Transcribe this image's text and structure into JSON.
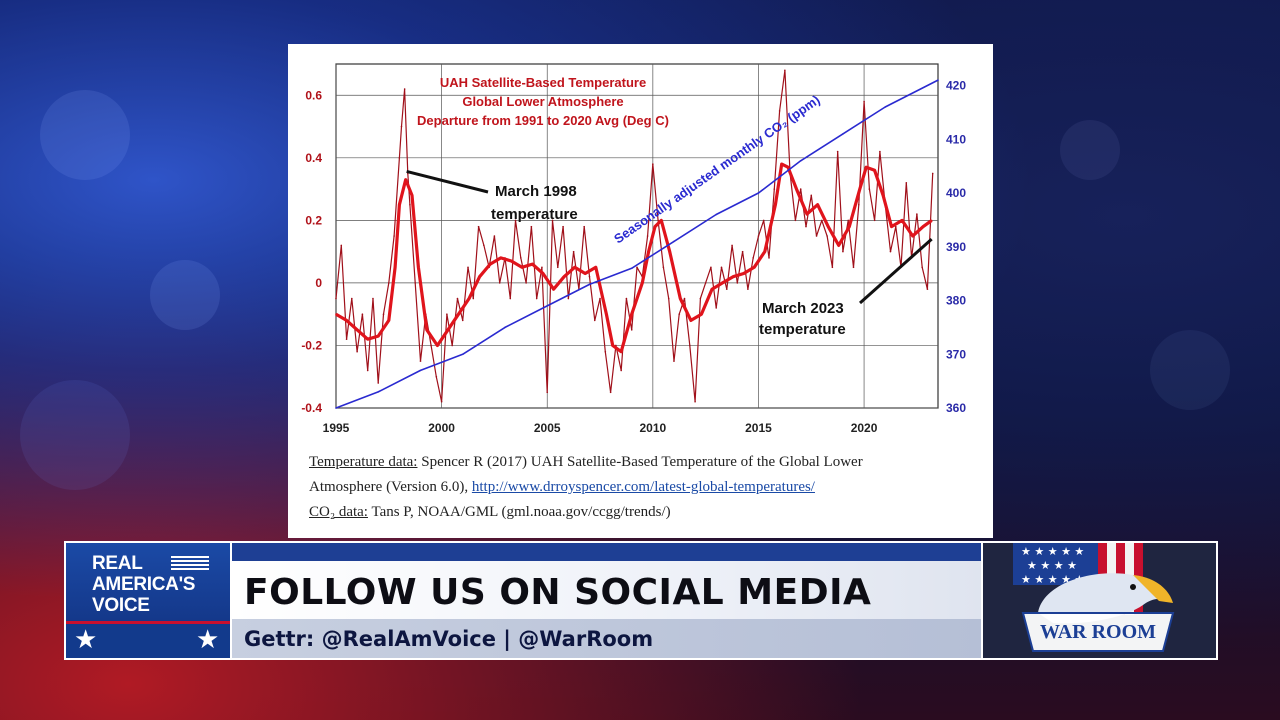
{
  "chart_data": {
    "type": "line",
    "title_lines": [
      "UAH Satellite-Based Temperature",
      "Global Lower Atmosphere",
      "Departure from 1991 to 2020 Avg (Deg C)"
    ],
    "xlim": [
      1995,
      2023.5
    ],
    "ylim": [
      -0.4,
      0.7
    ],
    "y2lim": [
      360,
      424
    ],
    "x_ticks": [
      "1995",
      "2000",
      "2005",
      "2010",
      "2015",
      "2020"
    ],
    "y_ticks": [
      "0.6",
      "0.4",
      "0.2",
      "0",
      "-0.2",
      "-0.4"
    ],
    "y2_ticks": [
      "420",
      "410",
      "400",
      "390",
      "380",
      "370",
      "360"
    ],
    "grid": true,
    "co2_label": "Seasonally adjusted monthly CO₂ (ppm)",
    "series": [
      {
        "color": "#a0101a",
        "x": [
          1995.0,
          1995.25,
          1995.5,
          1995.75,
          1996.0,
          1996.25,
          1996.5,
          1996.75,
          1997.0,
          1997.25,
          1997.5,
          1997.75,
          1998.0,
          1998.1,
          1998.25,
          1998.4,
          1998.5,
          1998.75,
          1999.0,
          1999.25,
          1999.5,
          1999.75,
          2000.0,
          2000.25,
          2000.5,
          2000.75,
          2001.0,
          2001.25,
          2001.5,
          2001.75,
          2002.0,
          2002.25,
          2002.5,
          2002.75,
          2003.0,
          2003.25,
          2003.5,
          2003.75,
          2004.0,
          2004.25,
          2004.5,
          2004.75,
          2005.0,
          2005.25,
          2005.5,
          2005.75,
          2006.0,
          2006.25,
          2006.5,
          2006.75,
          2007.0,
          2007.25,
          2007.5,
          2007.75,
          2008.0,
          2008.25,
          2008.5,
          2008.75,
          2009.0,
          2009.25,
          2009.5,
          2009.75,
          2010.0,
          2010.25,
          2010.5,
          2010.75,
          2011.0,
          2011.25,
          2011.5,
          2011.75,
          2012.0,
          2012.25,
          2012.5,
          2012.75,
          2013.0,
          2013.25,
          2013.5,
          2013.75,
          2014.0,
          2014.25,
          2014.5,
          2014.75,
          2015.0,
          2015.25,
          2015.5,
          2015.75,
          2016.0,
          2016.25,
          2016.5,
          2016.75,
          2017.0,
          2017.25,
          2017.5,
          2017.75,
          2018.0,
          2018.25,
          2018.5,
          2018.75,
          2019.0,
          2019.25,
          2019.5,
          2019.75,
          2020.0,
          2020.25,
          2020.5,
          2020.75,
          2021.0,
          2021.25,
          2021.5,
          2021.75,
          2022.0,
          2022.25,
          2022.5,
          2022.75,
          2023.0,
          2023.25
        ],
        "y": [
          -0.05,
          0.12,
          -0.18,
          -0.05,
          -0.22,
          -0.1,
          -0.28,
          -0.05,
          -0.32,
          -0.1,
          0.0,
          0.15,
          0.4,
          0.5,
          0.62,
          0.35,
          0.25,
          0.0,
          -0.25,
          -0.1,
          -0.2,
          -0.3,
          -0.38,
          -0.1,
          -0.2,
          -0.05,
          -0.12,
          0.05,
          -0.05,
          0.18,
          0.12,
          0.05,
          0.15,
          0.0,
          0.08,
          -0.05,
          0.2,
          0.08,
          0.0,
          0.18,
          -0.05,
          0.05,
          -0.35,
          0.2,
          0.05,
          0.18,
          -0.05,
          0.1,
          -0.02,
          0.18,
          0.02,
          -0.12,
          -0.05,
          -0.22,
          -0.35,
          -0.2,
          -0.28,
          -0.05,
          -0.15,
          0.05,
          0.02,
          0.15,
          0.38,
          0.2,
          0.05,
          -0.05,
          -0.25,
          -0.1,
          -0.05,
          -0.2,
          -0.38,
          -0.05,
          0.0,
          0.05,
          -0.08,
          0.05,
          -0.02,
          0.12,
          0.0,
          0.1,
          -0.02,
          0.08,
          0.15,
          0.2,
          0.08,
          0.3,
          0.55,
          0.68,
          0.35,
          0.2,
          0.3,
          0.18,
          0.28,
          0.15,
          0.2,
          0.15,
          0.05,
          0.42,
          0.1,
          0.2,
          0.05,
          0.25,
          0.58,
          0.3,
          0.2,
          0.42,
          0.25,
          0.1,
          0.18,
          0.05,
          0.32,
          0.08,
          0.22,
          0.05,
          -0.02,
          0.35
        ]
      },
      {
        "color": "#e0141c",
        "x": [
          1995.0,
          1995.5,
          1996.0,
          1996.5,
          1997.0,
          1997.5,
          1997.8,
          1998.0,
          1998.3,
          1998.6,
          1998.9,
          1999.3,
          1999.8,
          2000.3,
          2000.8,
          2001.3,
          2001.8,
          2002.3,
          2002.8,
          2003.3,
          2003.8,
          2004.3,
          2004.8,
          2005.3,
          2005.8,
          2006.3,
          2006.8,
          2007.3,
          2007.8,
          2008.1,
          2008.5,
          2009.0,
          2009.5,
          2009.8,
          2010.1,
          2010.4,
          2010.8,
          2011.3,
          2011.8,
          2012.3,
          2012.8,
          2013.3,
          2013.8,
          2014.3,
          2014.8,
          2015.3,
          2015.8,
          2016.1,
          2016.4,
          2016.8,
          2017.3,
          2017.8,
          2018.3,
          2018.8,
          2019.3,
          2019.8,
          2020.1,
          2020.5,
          2020.9,
          2021.3,
          2021.8,
          2022.3,
          2022.8,
          2023.2
        ],
        "y": [
          -0.1,
          -0.12,
          -0.15,
          -0.18,
          -0.17,
          -0.12,
          0.05,
          0.25,
          0.33,
          0.28,
          0.05,
          -0.15,
          -0.2,
          -0.15,
          -0.1,
          -0.05,
          0.02,
          0.06,
          0.08,
          0.07,
          0.05,
          0.06,
          0.03,
          -0.02,
          0.02,
          0.05,
          0.03,
          0.05,
          -0.1,
          -0.2,
          -0.22,
          -0.1,
          0.0,
          0.1,
          0.18,
          0.2,
          0.1,
          -0.05,
          -0.12,
          -0.1,
          -0.02,
          0.0,
          0.02,
          0.03,
          0.05,
          0.1,
          0.25,
          0.38,
          0.37,
          0.3,
          0.22,
          0.25,
          0.18,
          0.12,
          0.18,
          0.3,
          0.37,
          0.36,
          0.28,
          0.18,
          0.2,
          0.15,
          0.18,
          0.2
        ]
      },
      {
        "color": "#2a2ad0",
        "x": [
          1995.0,
          1997.0,
          1999.0,
          2001.0,
          2003.0,
          2005.0,
          2007.0,
          2009.0,
          2011.0,
          2013.0,
          2015.0,
          2017.0,
          2019.0,
          2021.0,
          2023.5
        ],
        "y": [
          360,
          363,
          367,
          370,
          375,
          379,
          383,
          386,
          391,
          396,
          400,
          406,
          411,
          416,
          421
        ]
      }
    ],
    "annotations": [
      {
        "text_lines": [
          "March 1998",
          "temperature"
        ],
        "x": 1998.25,
        "y": 0.35
      },
      {
        "text_lines": [
          "March 2023",
          "temperature"
        ],
        "x": 2023.2,
        "y": 0.14
      }
    ]
  },
  "credits": {
    "temp_label": "Temperature data:",
    "temp_text_1": " Spencer R (2017) UAH Satellite-Based Temperature of the Global Lower",
    "temp_text_2": "Atmosphere (Version 6.0), ",
    "temp_link": "http://www.drroyspencer.com/latest-global-temperatures/",
    "co2_label": "CO₂ data:",
    "co2_text": " Tans P, NOAA/GML (gml.noaa.gov/ccgg/trends/)"
  },
  "banner": {
    "logo_lines": [
      "REAL",
      "AMERICA'S",
      "VOICE"
    ],
    "headline": "FOLLOW US ON SOCIAL MEDIA",
    "subline": "Gettr: @RealAmVoice | @WarRoom",
    "warroom_label": "WAR ROOM",
    "colors": {
      "navy": "#123a8c",
      "red": "#c8102e",
      "headline_text": "#0d0d14"
    }
  }
}
